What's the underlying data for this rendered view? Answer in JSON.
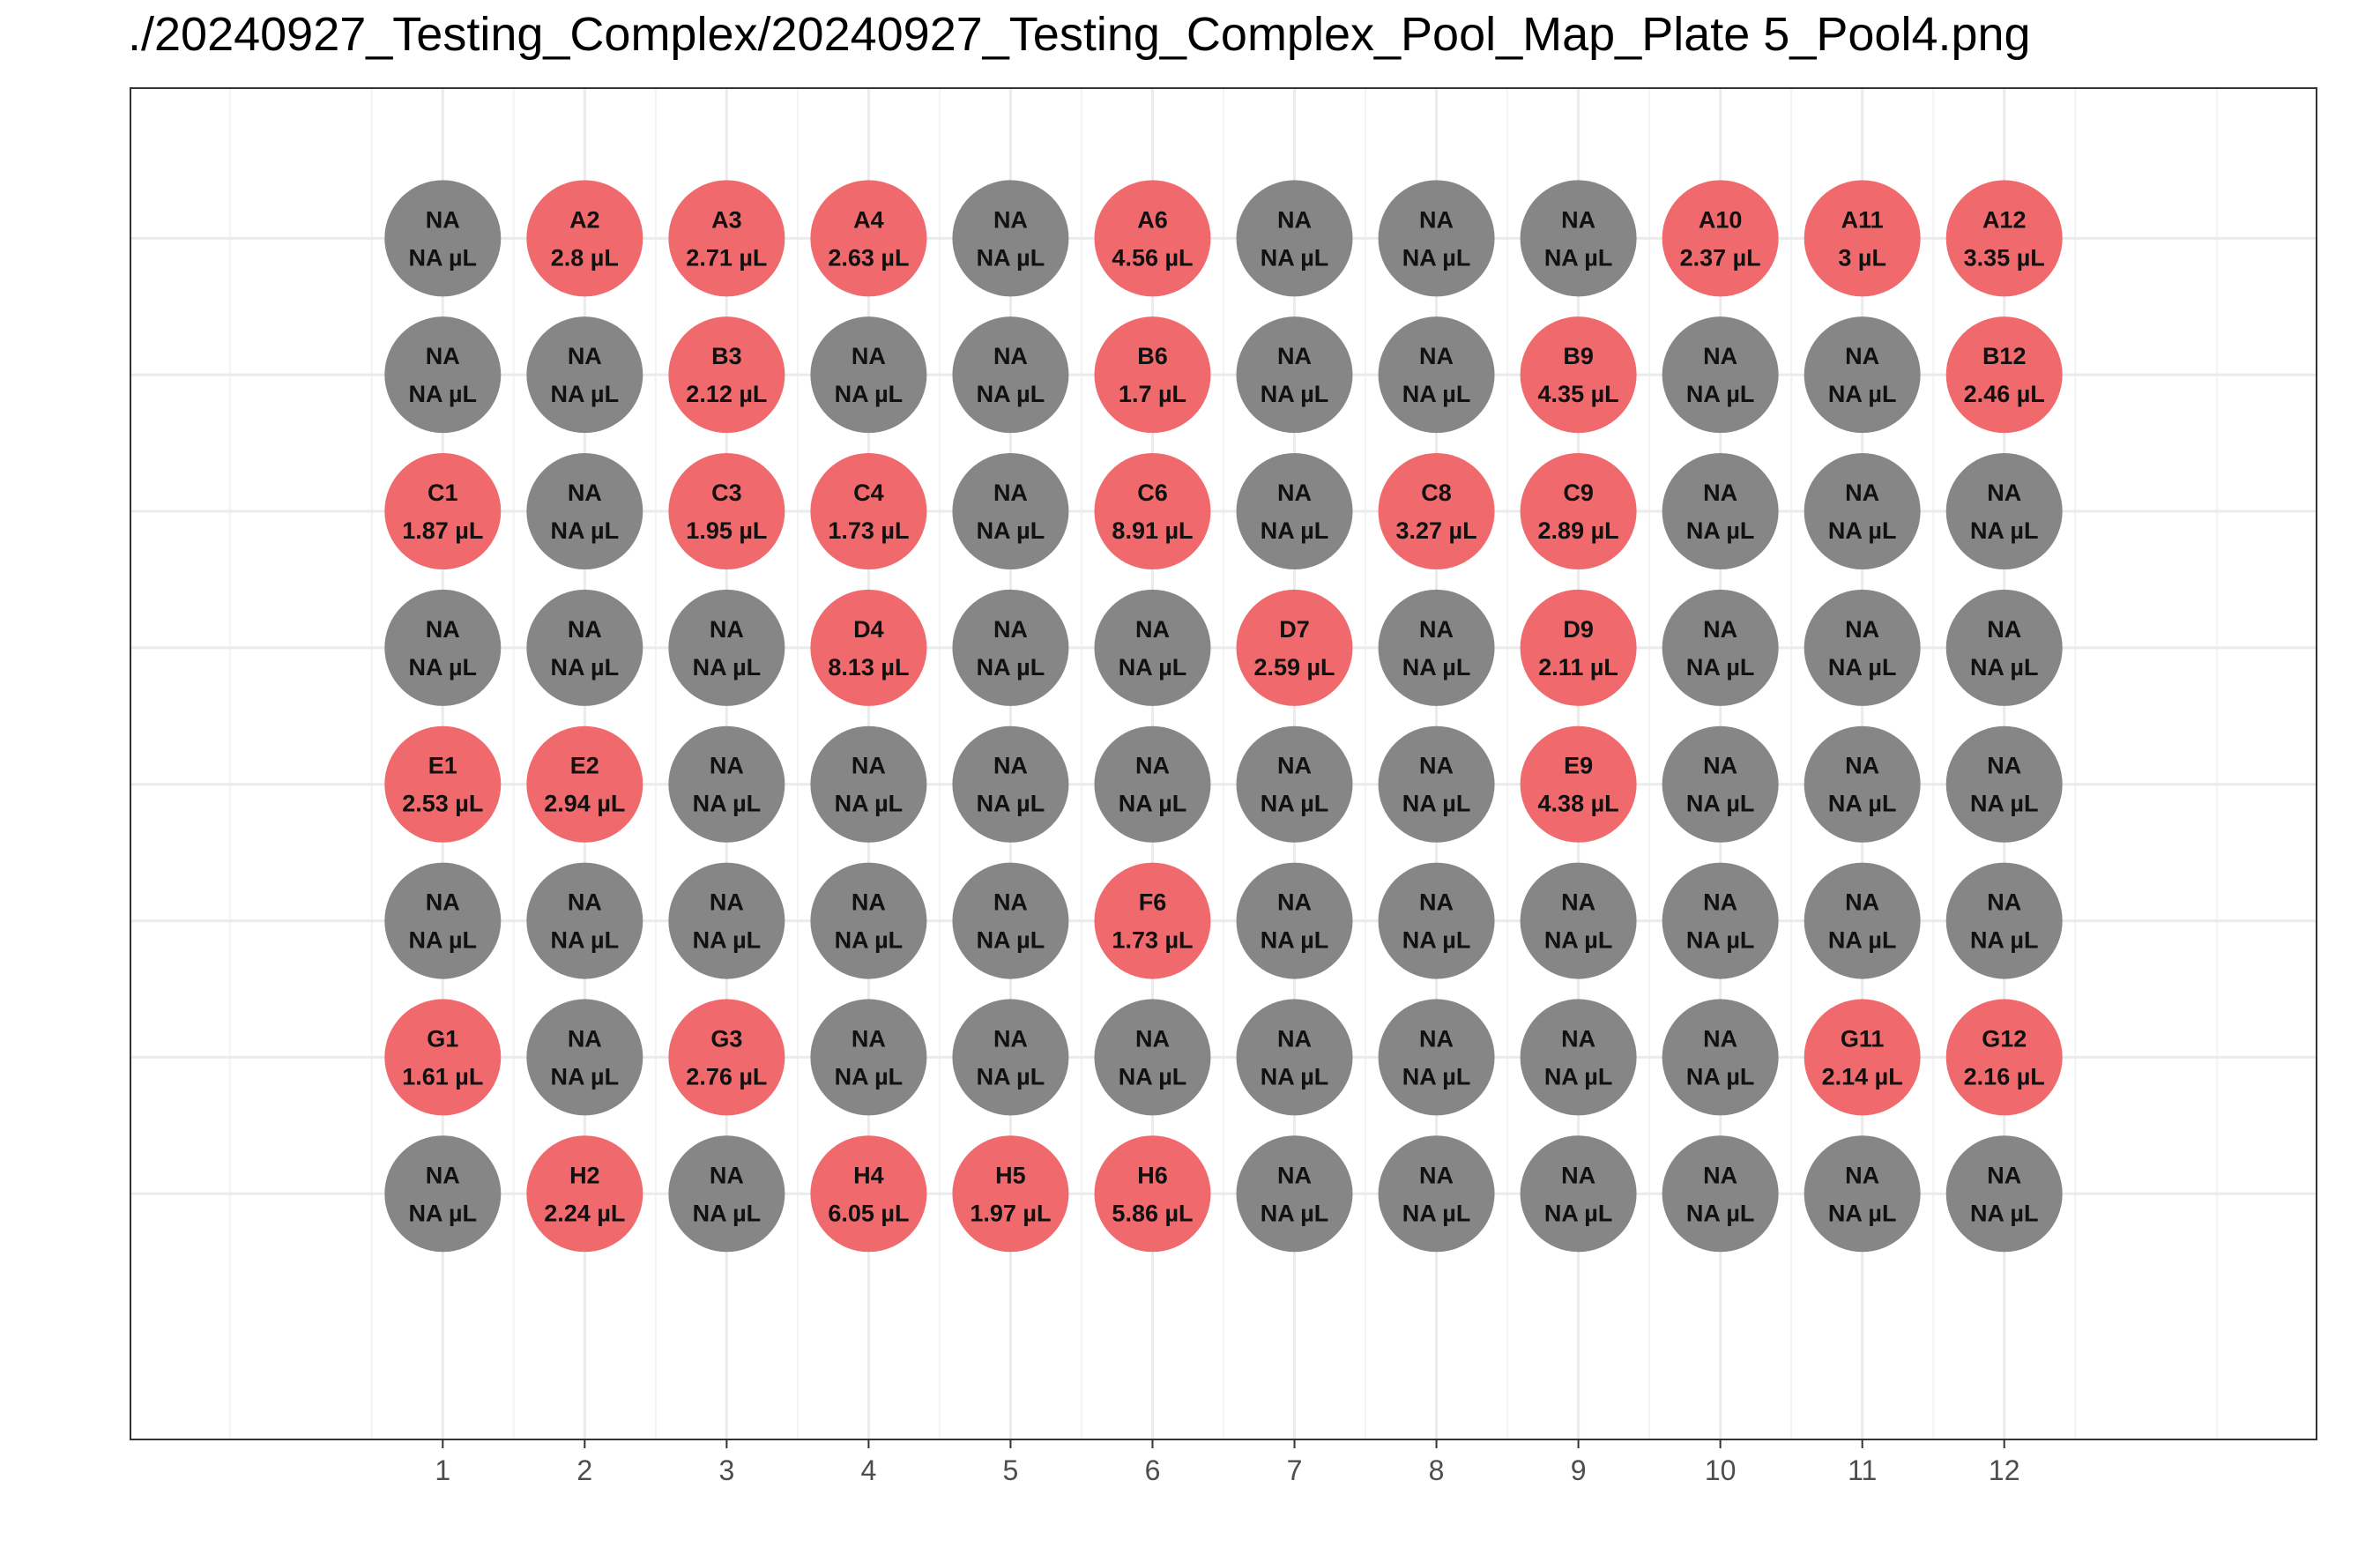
{
  "chart_data": {
    "type": "scatter",
    "title": "./20240927_Testing_Complex/20240927_Testing_Complex_Pool_Map_Plate 5_Pool4.png",
    "xlabel": "",
    "ylabel": "",
    "x": [
      1,
      2,
      3,
      4,
      5,
      6,
      7,
      8,
      9,
      10,
      11,
      12
    ],
    "x_tick_labels": [
      "1",
      "2",
      "3",
      "4",
      "5",
      "6",
      "7",
      "8",
      "9",
      "10",
      "11",
      "12"
    ],
    "rows": [
      "A",
      "B",
      "C",
      "D",
      "E",
      "F",
      "G",
      "H"
    ],
    "xlim": [
      -1.2,
      14.2
    ],
    "ylim": [
      0.2,
      10.1
    ],
    "grid": true,
    "legend": "none",
    "colors": {
      "filled": "#f06a6d",
      "empty": "#868686",
      "panel_border": "#333333",
      "grid_major": "#ebebeb",
      "grid_minor": "#f3f3f3"
    },
    "wells": [
      {
        "row": "A",
        "col": 1,
        "name": "NA",
        "volume": "NA µL",
        "filled": false
      },
      {
        "row": "A",
        "col": 2,
        "name": "A2",
        "volume": "2.8 µL",
        "filled": true
      },
      {
        "row": "A",
        "col": 3,
        "name": "A3",
        "volume": "2.71 µL",
        "filled": true
      },
      {
        "row": "A",
        "col": 4,
        "name": "A4",
        "volume": "2.63 µL",
        "filled": true
      },
      {
        "row": "A",
        "col": 5,
        "name": "NA",
        "volume": "NA µL",
        "filled": false
      },
      {
        "row": "A",
        "col": 6,
        "name": "A6",
        "volume": "4.56 µL",
        "filled": true
      },
      {
        "row": "A",
        "col": 7,
        "name": "NA",
        "volume": "NA µL",
        "filled": false
      },
      {
        "row": "A",
        "col": 8,
        "name": "NA",
        "volume": "NA µL",
        "filled": false
      },
      {
        "row": "A",
        "col": 9,
        "name": "NA",
        "volume": "NA µL",
        "filled": false
      },
      {
        "row": "A",
        "col": 10,
        "name": "A10",
        "volume": "2.37 µL",
        "filled": true
      },
      {
        "row": "A",
        "col": 11,
        "name": "A11",
        "volume": "3 µL",
        "filled": true
      },
      {
        "row": "A",
        "col": 12,
        "name": "A12",
        "volume": "3.35 µL",
        "filled": true
      },
      {
        "row": "B",
        "col": 1,
        "name": "NA",
        "volume": "NA µL",
        "filled": false
      },
      {
        "row": "B",
        "col": 2,
        "name": "NA",
        "volume": "NA µL",
        "filled": false
      },
      {
        "row": "B",
        "col": 3,
        "name": "B3",
        "volume": "2.12 µL",
        "filled": true
      },
      {
        "row": "B",
        "col": 4,
        "name": "NA",
        "volume": "NA µL",
        "filled": false
      },
      {
        "row": "B",
        "col": 5,
        "name": "NA",
        "volume": "NA µL",
        "filled": false
      },
      {
        "row": "B",
        "col": 6,
        "name": "B6",
        "volume": "1.7 µL",
        "filled": true
      },
      {
        "row": "B",
        "col": 7,
        "name": "NA",
        "volume": "NA µL",
        "filled": false
      },
      {
        "row": "B",
        "col": 8,
        "name": "NA",
        "volume": "NA µL",
        "filled": false
      },
      {
        "row": "B",
        "col": 9,
        "name": "B9",
        "volume": "4.35 µL",
        "filled": true
      },
      {
        "row": "B",
        "col": 10,
        "name": "NA",
        "volume": "NA µL",
        "filled": false
      },
      {
        "row": "B",
        "col": 11,
        "name": "NA",
        "volume": "NA µL",
        "filled": false
      },
      {
        "row": "B",
        "col": 12,
        "name": "B12",
        "volume": "2.46 µL",
        "filled": true
      },
      {
        "row": "C",
        "col": 1,
        "name": "C1",
        "volume": "1.87 µL",
        "filled": true
      },
      {
        "row": "C",
        "col": 2,
        "name": "NA",
        "volume": "NA µL",
        "filled": false
      },
      {
        "row": "C",
        "col": 3,
        "name": "C3",
        "volume": "1.95 µL",
        "filled": true
      },
      {
        "row": "C",
        "col": 4,
        "name": "C4",
        "volume": "1.73 µL",
        "filled": true
      },
      {
        "row": "C",
        "col": 5,
        "name": "NA",
        "volume": "NA µL",
        "filled": false
      },
      {
        "row": "C",
        "col": 6,
        "name": "C6",
        "volume": "8.91 µL",
        "filled": true
      },
      {
        "row": "C",
        "col": 7,
        "name": "NA",
        "volume": "NA µL",
        "filled": false
      },
      {
        "row": "C",
        "col": 8,
        "name": "C8",
        "volume": "3.27 µL",
        "filled": true
      },
      {
        "row": "C",
        "col": 9,
        "name": "C9",
        "volume": "2.89 µL",
        "filled": true
      },
      {
        "row": "C",
        "col": 10,
        "name": "NA",
        "volume": "NA µL",
        "filled": false
      },
      {
        "row": "C",
        "col": 11,
        "name": "NA",
        "volume": "NA µL",
        "filled": false
      },
      {
        "row": "C",
        "col": 12,
        "name": "NA",
        "volume": "NA µL",
        "filled": false
      },
      {
        "row": "D",
        "col": 1,
        "name": "NA",
        "volume": "NA µL",
        "filled": false
      },
      {
        "row": "D",
        "col": 2,
        "name": "NA",
        "volume": "NA µL",
        "filled": false
      },
      {
        "row": "D",
        "col": 3,
        "name": "NA",
        "volume": "NA µL",
        "filled": false
      },
      {
        "row": "D",
        "col": 4,
        "name": "D4",
        "volume": "8.13 µL",
        "filled": true
      },
      {
        "row": "D",
        "col": 5,
        "name": "NA",
        "volume": "NA µL",
        "filled": false
      },
      {
        "row": "D",
        "col": 6,
        "name": "NA",
        "volume": "NA µL",
        "filled": false
      },
      {
        "row": "D",
        "col": 7,
        "name": "D7",
        "volume": "2.59 µL",
        "filled": true
      },
      {
        "row": "D",
        "col": 8,
        "name": "NA",
        "volume": "NA µL",
        "filled": false
      },
      {
        "row": "D",
        "col": 9,
        "name": "D9",
        "volume": "2.11 µL",
        "filled": true
      },
      {
        "row": "D",
        "col": 10,
        "name": "NA",
        "volume": "NA µL",
        "filled": false
      },
      {
        "row": "D",
        "col": 11,
        "name": "NA",
        "volume": "NA µL",
        "filled": false
      },
      {
        "row": "D",
        "col": 12,
        "name": "NA",
        "volume": "NA µL",
        "filled": false
      },
      {
        "row": "E",
        "col": 1,
        "name": "E1",
        "volume": "2.53 µL",
        "filled": true
      },
      {
        "row": "E",
        "col": 2,
        "name": "E2",
        "volume": "2.94 µL",
        "filled": true
      },
      {
        "row": "E",
        "col": 3,
        "name": "NA",
        "volume": "NA µL",
        "filled": false
      },
      {
        "row": "E",
        "col": 4,
        "name": "NA",
        "volume": "NA µL",
        "filled": false
      },
      {
        "row": "E",
        "col": 5,
        "name": "NA",
        "volume": "NA µL",
        "filled": false
      },
      {
        "row": "E",
        "col": 6,
        "name": "NA",
        "volume": "NA µL",
        "filled": false
      },
      {
        "row": "E",
        "col": 7,
        "name": "NA",
        "volume": "NA µL",
        "filled": false
      },
      {
        "row": "E",
        "col": 8,
        "name": "NA",
        "volume": "NA µL",
        "filled": false
      },
      {
        "row": "E",
        "col": 9,
        "name": "E9",
        "volume": "4.38 µL",
        "filled": true
      },
      {
        "row": "E",
        "col": 10,
        "name": "NA",
        "volume": "NA µL",
        "filled": false
      },
      {
        "row": "E",
        "col": 11,
        "name": "NA",
        "volume": "NA µL",
        "filled": false
      },
      {
        "row": "E",
        "col": 12,
        "name": "NA",
        "volume": "NA µL",
        "filled": false
      },
      {
        "row": "F",
        "col": 1,
        "name": "NA",
        "volume": "NA µL",
        "filled": false
      },
      {
        "row": "F",
        "col": 2,
        "name": "NA",
        "volume": "NA µL",
        "filled": false
      },
      {
        "row": "F",
        "col": 3,
        "name": "NA",
        "volume": "NA µL",
        "filled": false
      },
      {
        "row": "F",
        "col": 4,
        "name": "NA",
        "volume": "NA µL",
        "filled": false
      },
      {
        "row": "F",
        "col": 5,
        "name": "NA",
        "volume": "NA µL",
        "filled": false
      },
      {
        "row": "F",
        "col": 6,
        "name": "F6",
        "volume": "1.73 µL",
        "filled": true
      },
      {
        "row": "F",
        "col": 7,
        "name": "NA",
        "volume": "NA µL",
        "filled": false
      },
      {
        "row": "F",
        "col": 8,
        "name": "NA",
        "volume": "NA µL",
        "filled": false
      },
      {
        "row": "F",
        "col": 9,
        "name": "NA",
        "volume": "NA µL",
        "filled": false
      },
      {
        "row": "F",
        "col": 10,
        "name": "NA",
        "volume": "NA µL",
        "filled": false
      },
      {
        "row": "F",
        "col": 11,
        "name": "NA",
        "volume": "NA µL",
        "filled": false
      },
      {
        "row": "F",
        "col": 12,
        "name": "NA",
        "volume": "NA µL",
        "filled": false
      },
      {
        "row": "G",
        "col": 1,
        "name": "G1",
        "volume": "1.61 µL",
        "filled": true
      },
      {
        "row": "G",
        "col": 2,
        "name": "NA",
        "volume": "NA µL",
        "filled": false
      },
      {
        "row": "G",
        "col": 3,
        "name": "G3",
        "volume": "2.76 µL",
        "filled": true
      },
      {
        "row": "G",
        "col": 4,
        "name": "NA",
        "volume": "NA µL",
        "filled": false
      },
      {
        "row": "G",
        "col": 5,
        "name": "NA",
        "volume": "NA µL",
        "filled": false
      },
      {
        "row": "G",
        "col": 6,
        "name": "NA",
        "volume": "NA µL",
        "filled": false
      },
      {
        "row": "G",
        "col": 7,
        "name": "NA",
        "volume": "NA µL",
        "filled": false
      },
      {
        "row": "G",
        "col": 8,
        "name": "NA",
        "volume": "NA µL",
        "filled": false
      },
      {
        "row": "G",
        "col": 9,
        "name": "NA",
        "volume": "NA µL",
        "filled": false
      },
      {
        "row": "G",
        "col": 10,
        "name": "NA",
        "volume": "NA µL",
        "filled": false
      },
      {
        "row": "G",
        "col": 11,
        "name": "G11",
        "volume": "2.14 µL",
        "filled": true
      },
      {
        "row": "G",
        "col": 12,
        "name": "G12",
        "volume": "2.16 µL",
        "filled": true
      },
      {
        "row": "H",
        "col": 1,
        "name": "NA",
        "volume": "NA µL",
        "filled": false
      },
      {
        "row": "H",
        "col": 2,
        "name": "H2",
        "volume": "2.24 µL",
        "filled": true
      },
      {
        "row": "H",
        "col": 3,
        "name": "NA",
        "volume": "NA µL",
        "filled": false
      },
      {
        "row": "H",
        "col": 4,
        "name": "H4",
        "volume": "6.05 µL",
        "filled": true
      },
      {
        "row": "H",
        "col": 5,
        "name": "H5",
        "volume": "1.97 µL",
        "filled": true
      },
      {
        "row": "H",
        "col": 6,
        "name": "H6",
        "volume": "5.86 µL",
        "filled": true
      },
      {
        "row": "H",
        "col": 7,
        "name": "NA",
        "volume": "NA µL",
        "filled": false
      },
      {
        "row": "H",
        "col": 8,
        "name": "NA",
        "volume": "NA µL",
        "filled": false
      },
      {
        "row": "H",
        "col": 9,
        "name": "NA",
        "volume": "NA µL",
        "filled": false
      },
      {
        "row": "H",
        "col": 10,
        "name": "NA",
        "volume": "NA µL",
        "filled": false
      },
      {
        "row": "H",
        "col": 11,
        "name": "NA",
        "volume": "NA µL",
        "filled": false
      },
      {
        "row": "H",
        "col": 12,
        "name": "NA",
        "volume": "NA µL",
        "filled": false
      }
    ]
  }
}
